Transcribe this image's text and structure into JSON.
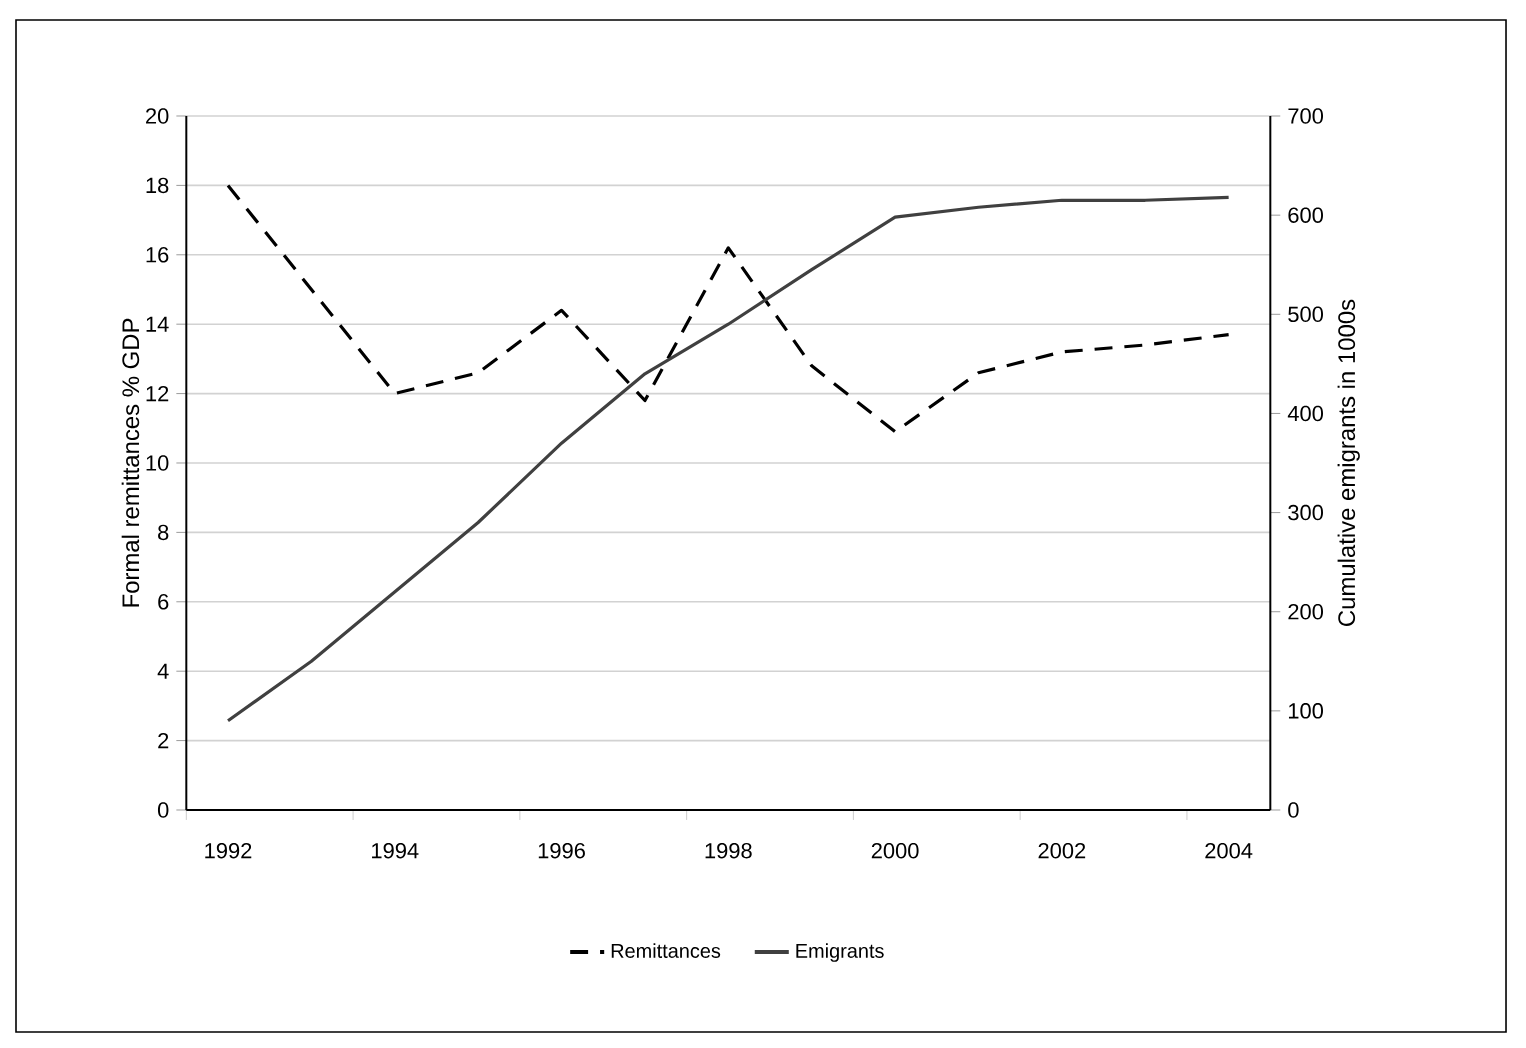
{
  "chart_data": {
    "type": "line",
    "ylabel": "Formal remittances %  GDP",
    "y2label": "Cumulative emigrants in 1000s",
    "categories": [
      "1992",
      null,
      "1994",
      null,
      "1996",
      null,
      "1998",
      null,
      "2000",
      null,
      "2002",
      null,
      "2004"
    ],
    "series": [
      {
        "name": "Remittances",
        "color": "#000000",
        "line_style": "dashed",
        "values": [
          18,
          15,
          12,
          12.6,
          14.4,
          11.8,
          16.2,
          12.8,
          10.9,
          12.6,
          13.2,
          13.4,
          13.7
        ]
      },
      {
        "name": "Emigrants",
        "color": "#404040",
        "line_style": "solid",
        "axis": "y2",
        "values": [
          90,
          150,
          220,
          290,
          370,
          440,
          490,
          545,
          598,
          608,
          615,
          615,
          618
        ]
      }
    ],
    "ylim": [
      0,
      20
    ],
    "yticks": [
      0,
      2,
      4,
      6,
      8,
      10,
      12,
      14,
      16,
      18,
      20
    ],
    "y2lim": [
      0,
      700
    ],
    "y2ticks": [
      0,
      100,
      200,
      300,
      400,
      500,
      600,
      700
    ],
    "grid": "y",
    "legend": "bottom",
    "marker": "none"
  }
}
